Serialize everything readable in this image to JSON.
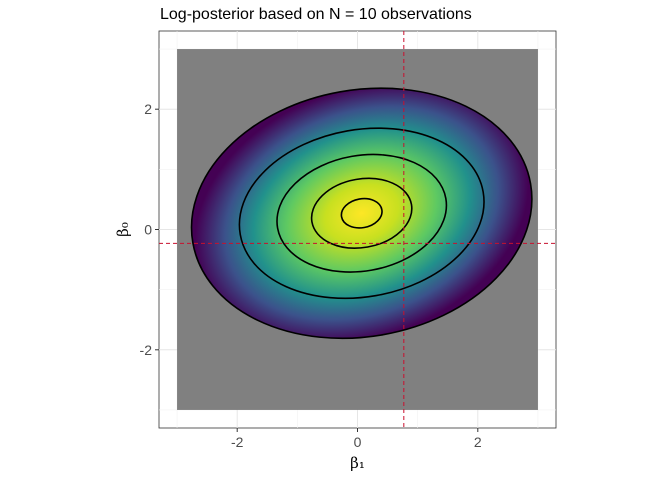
{
  "chart_data": {
    "type": "heatmap",
    "title": "Log-posterior based on N = 10 observations",
    "xlabel": "β₁",
    "ylabel": "β₀",
    "xlim": [
      -3.3,
      3.3
    ],
    "ylim": [
      -3.3,
      3.3
    ],
    "domain": {
      "x": [
        -3,
        3
      ],
      "y": [
        -3,
        3
      ]
    },
    "xticks": [
      -2,
      0,
      2
    ],
    "yticks": [
      -2,
      0,
      2
    ],
    "xtick_labels": [
      "-2",
      "0",
      "2"
    ],
    "ytick_labels": [
      "-2",
      "0",
      "2"
    ],
    "posterior_mode": {
      "x": 0.07,
      "y": 0.27
    },
    "true_values": {
      "x": 0.77,
      "y": -0.23
    },
    "contours": [
      {
        "level": 1,
        "rx": 0.34,
        "ry": 0.24
      },
      {
        "level": 2,
        "rx": 0.84,
        "ry": 0.57
      },
      {
        "level": 3,
        "rx": 1.42,
        "ry": 0.96
      },
      {
        "level": 4,
        "rx": 2.05,
        "ry": 1.39
      },
      {
        "level": 5,
        "rx": 2.85,
        "ry": 2.05
      }
    ],
    "contour_tilt_deg": -10,
    "grid": true,
    "colors": {
      "background_tile": "#808080",
      "reference_line": "#c8102e",
      "contour": "#000000",
      "palette": [
        "#440154",
        "#3b528b",
        "#21918c",
        "#5ec962",
        "#fde725"
      ]
    }
  }
}
